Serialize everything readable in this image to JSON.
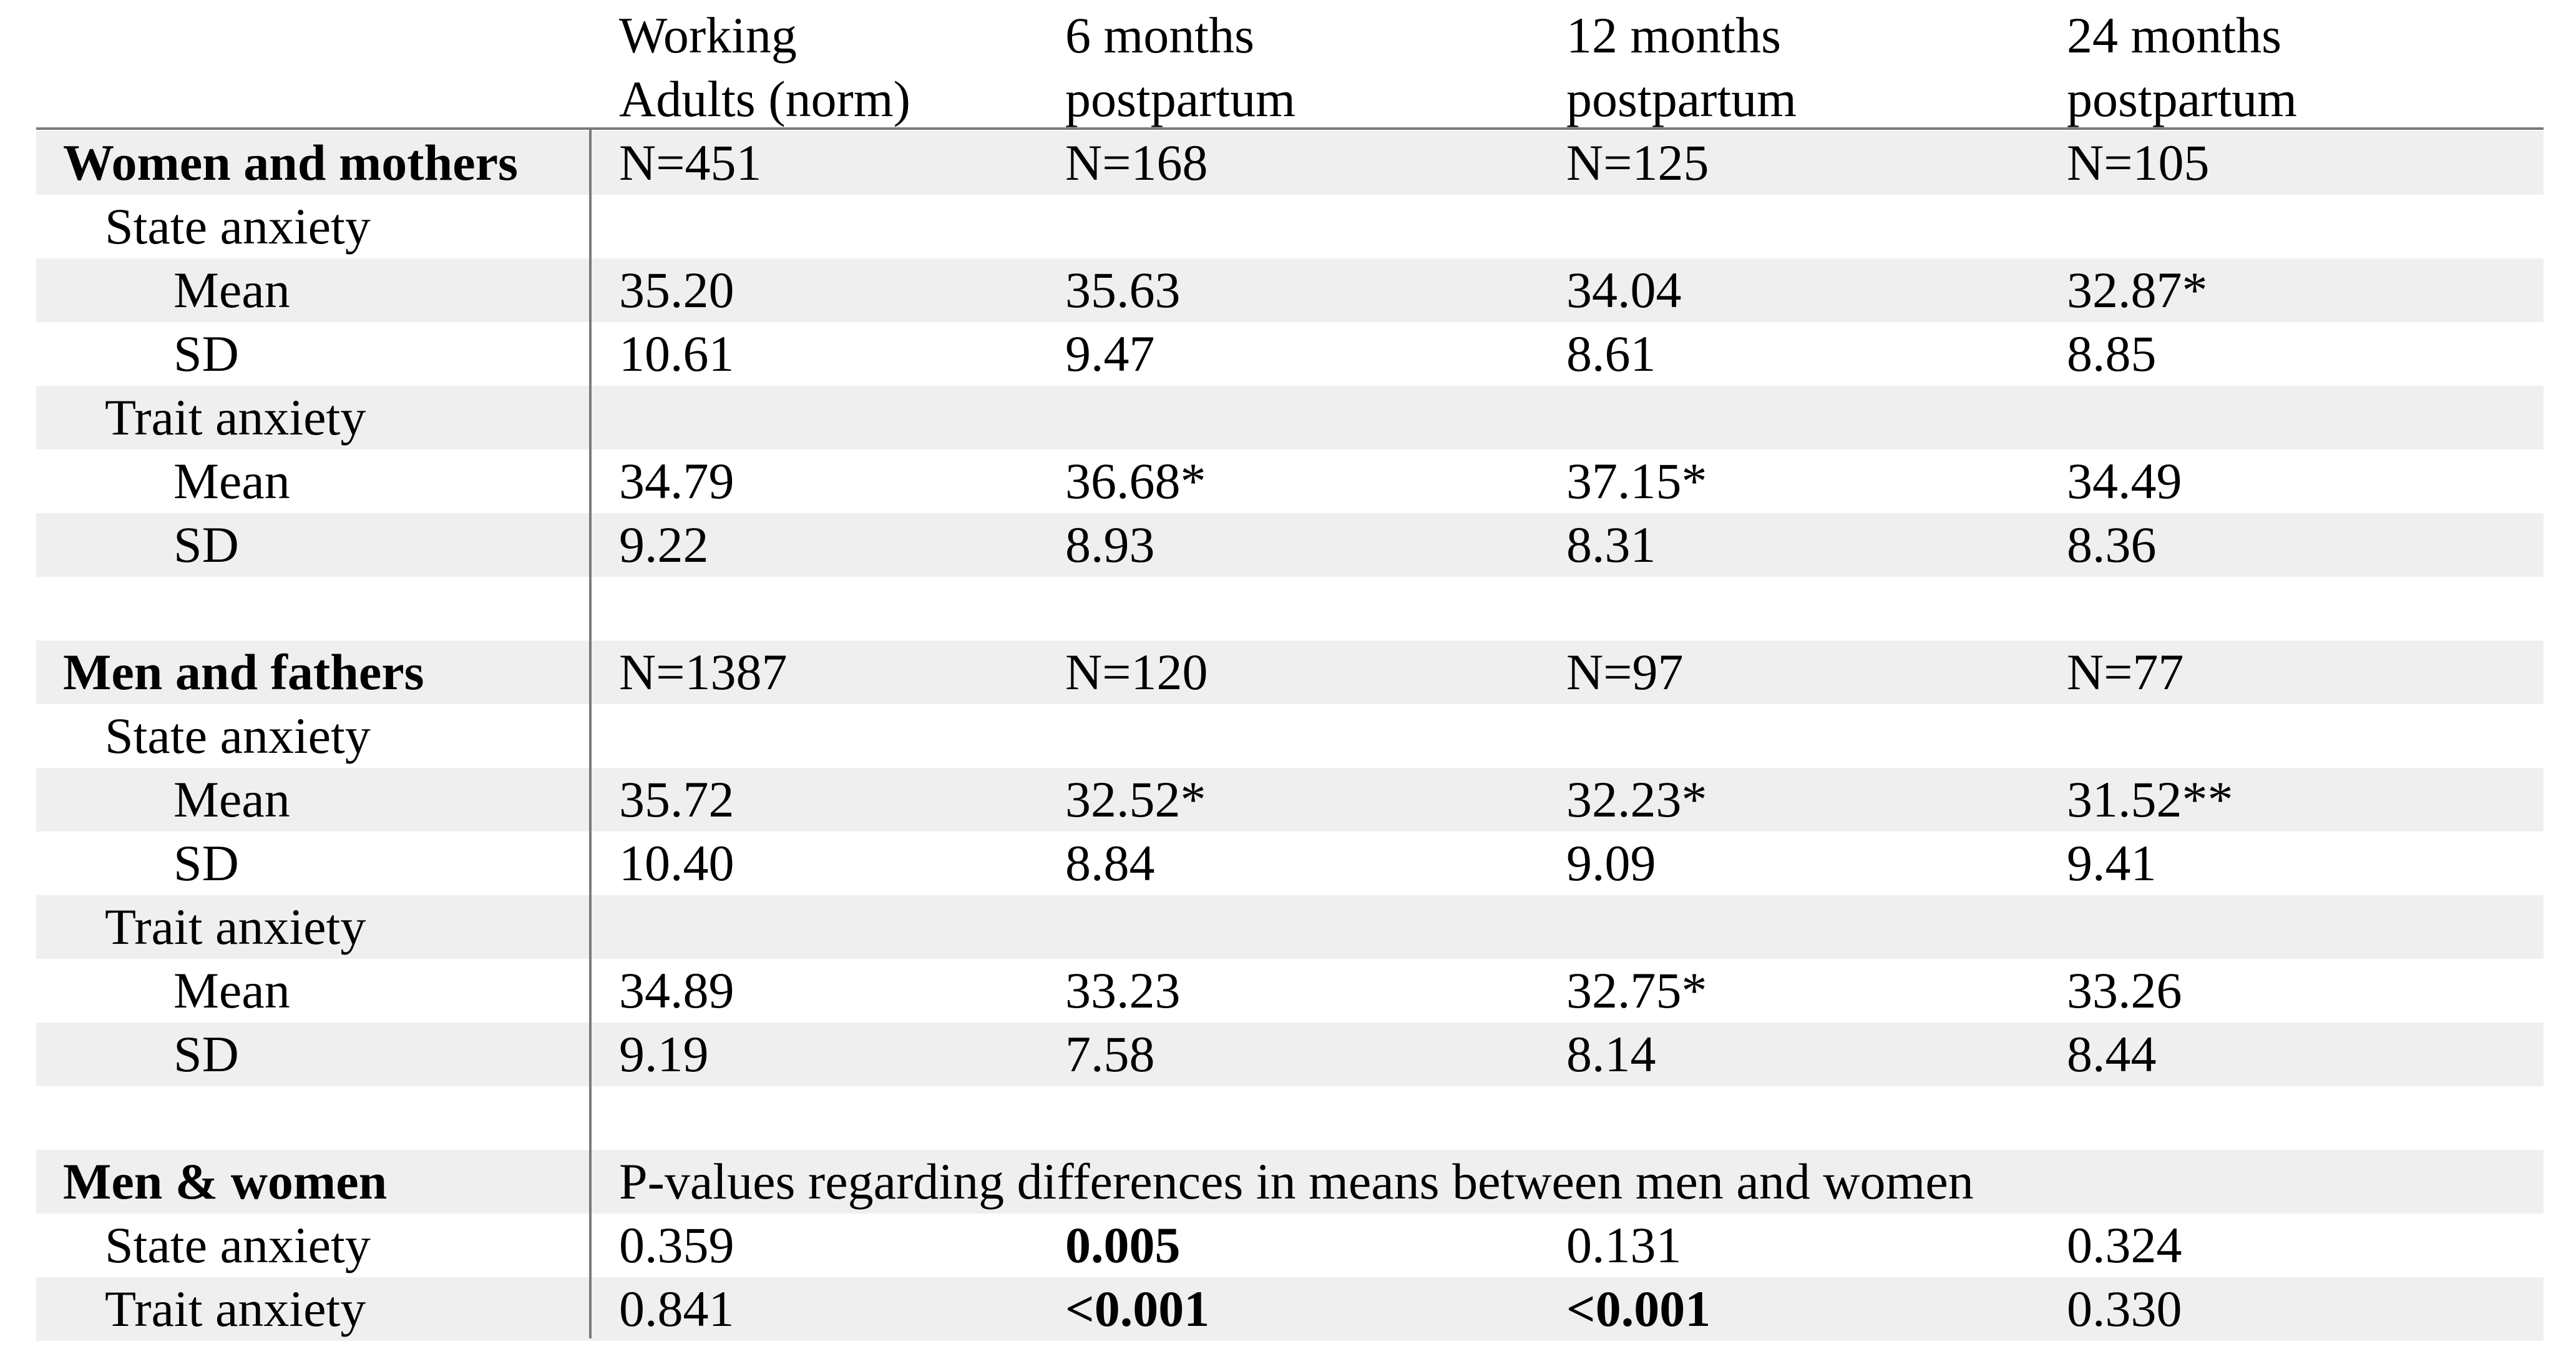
{
  "headers": {
    "col1_line1": "Working",
    "col1_line2": "Adults (norm)",
    "col2_line1": "6 months",
    "col2_line2": "postpartum",
    "col3_line1": "12 months",
    "col3_line2": "postpartum",
    "col4_line1": "24 months",
    "col4_line2": "postpartum"
  },
  "women": {
    "title": "Women and mothers",
    "n": [
      "N=451",
      "N=168",
      "N=125",
      "N=105"
    ],
    "state_label": "State anxiety",
    "state_mean_label": "Mean",
    "state_mean": [
      "35.20",
      "35.63",
      "34.04",
      "32.87*"
    ],
    "state_sd_label": "SD",
    "state_sd": [
      "10.61",
      "9.47",
      "8.61",
      "8.85"
    ],
    "trait_label": "Trait anxiety",
    "trait_mean_label": "Mean",
    "trait_mean": [
      "34.79",
      "36.68*",
      "37.15*",
      "34.49"
    ],
    "trait_sd_label": "SD",
    "trait_sd": [
      "9.22",
      "8.93",
      "8.31",
      "8.36"
    ]
  },
  "men": {
    "title": "Men and fathers",
    "n": [
      "N=1387",
      "N=120",
      "N=97",
      "N=77"
    ],
    "state_label": "State anxiety",
    "state_mean_label": "Mean",
    "state_mean": [
      "35.72",
      "32.52*",
      "32.23*",
      "31.52**"
    ],
    "state_sd_label": "SD",
    "state_sd": [
      "10.40",
      "8.84",
      "9.09",
      "9.41"
    ],
    "trait_label": "Trait anxiety",
    "trait_mean_label": "Mean",
    "trait_mean": [
      "34.89",
      "33.23",
      "32.75*",
      "33.26"
    ],
    "trait_sd_label": "SD",
    "trait_sd": [
      "9.19",
      "7.58",
      "8.14",
      "8.44"
    ]
  },
  "comparison": {
    "title": "Men & women",
    "pvalue_note": "P-values regarding differences in means between men and women",
    "state_label": "State anxiety",
    "state_p": [
      "0.359",
      "0.005",
      "0.131",
      "0.324"
    ],
    "trait_label": "Trait anxiety",
    "trait_p": [
      "0.841",
      "<0.001",
      "<0.001",
      "0.330"
    ]
  },
  "colors": {
    "row_shade": "#efefef",
    "rule": "#7a7a7a",
    "text": "#000000"
  }
}
